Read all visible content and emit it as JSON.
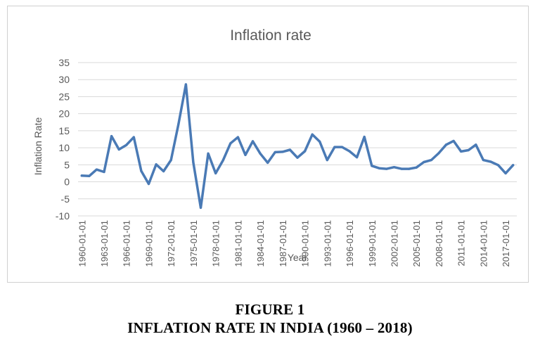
{
  "colors": {
    "line": "#4a7ab5",
    "grid": "#d9d9d9",
    "axis_text": "#595959",
    "title_text": "#595959"
  },
  "caption": {
    "figure": "FIGURE 1",
    "title": "INFLATION RATE IN INDIA (1960 – 2018)"
  },
  "chart_data": {
    "type": "line",
    "title": "Inflation rate",
    "xlabel": "Year",
    "ylabel": "Inflation Rate",
    "ylim": [
      -10,
      35
    ],
    "yticks": [
      35,
      30,
      25,
      20,
      15,
      10,
      5,
      0,
      -5,
      -10
    ],
    "grid": true,
    "legend": "none",
    "x": [
      "1960-01-01",
      "1961-01-01",
      "1962-01-01",
      "1963-01-01",
      "1964-01-01",
      "1965-01-01",
      "1966-01-01",
      "1967-01-01",
      "1968-01-01",
      "1969-01-01",
      "1970-01-01",
      "1971-01-01",
      "1972-01-01",
      "1973-01-01",
      "1974-01-01",
      "1975-01-01",
      "1976-01-01",
      "1977-01-01",
      "1978-01-01",
      "1979-01-01",
      "1980-01-01",
      "1981-01-01",
      "1982-01-01",
      "1983-01-01",
      "1984-01-01",
      "1985-01-01",
      "1986-01-01",
      "1987-01-01",
      "1988-01-01",
      "1989-01-01",
      "1990-01-01",
      "1991-01-01",
      "1992-01-01",
      "1993-01-01",
      "1994-01-01",
      "1995-01-01",
      "1996-01-01",
      "1997-01-01",
      "1998-01-01",
      "1999-01-01",
      "2000-01-01",
      "2001-01-01",
      "2002-01-01",
      "2003-01-01",
      "2004-01-01",
      "2005-01-01",
      "2006-01-01",
      "2007-01-01",
      "2008-01-01",
      "2009-01-01",
      "2010-01-01",
      "2011-01-01",
      "2012-01-01",
      "2013-01-01",
      "2014-01-01",
      "2015-01-01",
      "2016-01-01",
      "2017-01-01",
      "2018-01-01"
    ],
    "xtick_labels": [
      "1960-01-01",
      "1963-01-01",
      "1966-01-01",
      "1969-01-01",
      "1972-01-01",
      "1975-01-01",
      "1978-01-01",
      "1981-01-01",
      "1984-01-01",
      "1987-01-01",
      "1990-01-01",
      "1993-01-01",
      "1996-01-01",
      "1999-01-01",
      "2002-01-01",
      "2005-01-01",
      "2008-01-01",
      "2011-01-01",
      "2014-01-01",
      "2017-01-01"
    ],
    "series": [
      {
        "name": "",
        "values": [
          1.8,
          1.7,
          3.6,
          2.9,
          13.4,
          9.5,
          10.8,
          13.1,
          3.2,
          -0.6,
          5.1,
          3.1,
          6.4,
          16.9,
          28.6,
          5.7,
          -7.6,
          8.3,
          2.5,
          6.3,
          11.3,
          13.1,
          7.9,
          11.9,
          8.3,
          5.6,
          8.7,
          8.8,
          9.4,
          7.1,
          9.0,
          13.9,
          11.8,
          6.4,
          10.2,
          10.2,
          9.0,
          7.2,
          13.2,
          4.7,
          4.0,
          3.8,
          4.3,
          3.8,
          3.8,
          4.2,
          5.8,
          6.4,
          8.4,
          10.9,
          12.0,
          8.9,
          9.3,
          10.9,
          6.4,
          5.9,
          4.9,
          2.5,
          4.9
        ]
      }
    ]
  }
}
